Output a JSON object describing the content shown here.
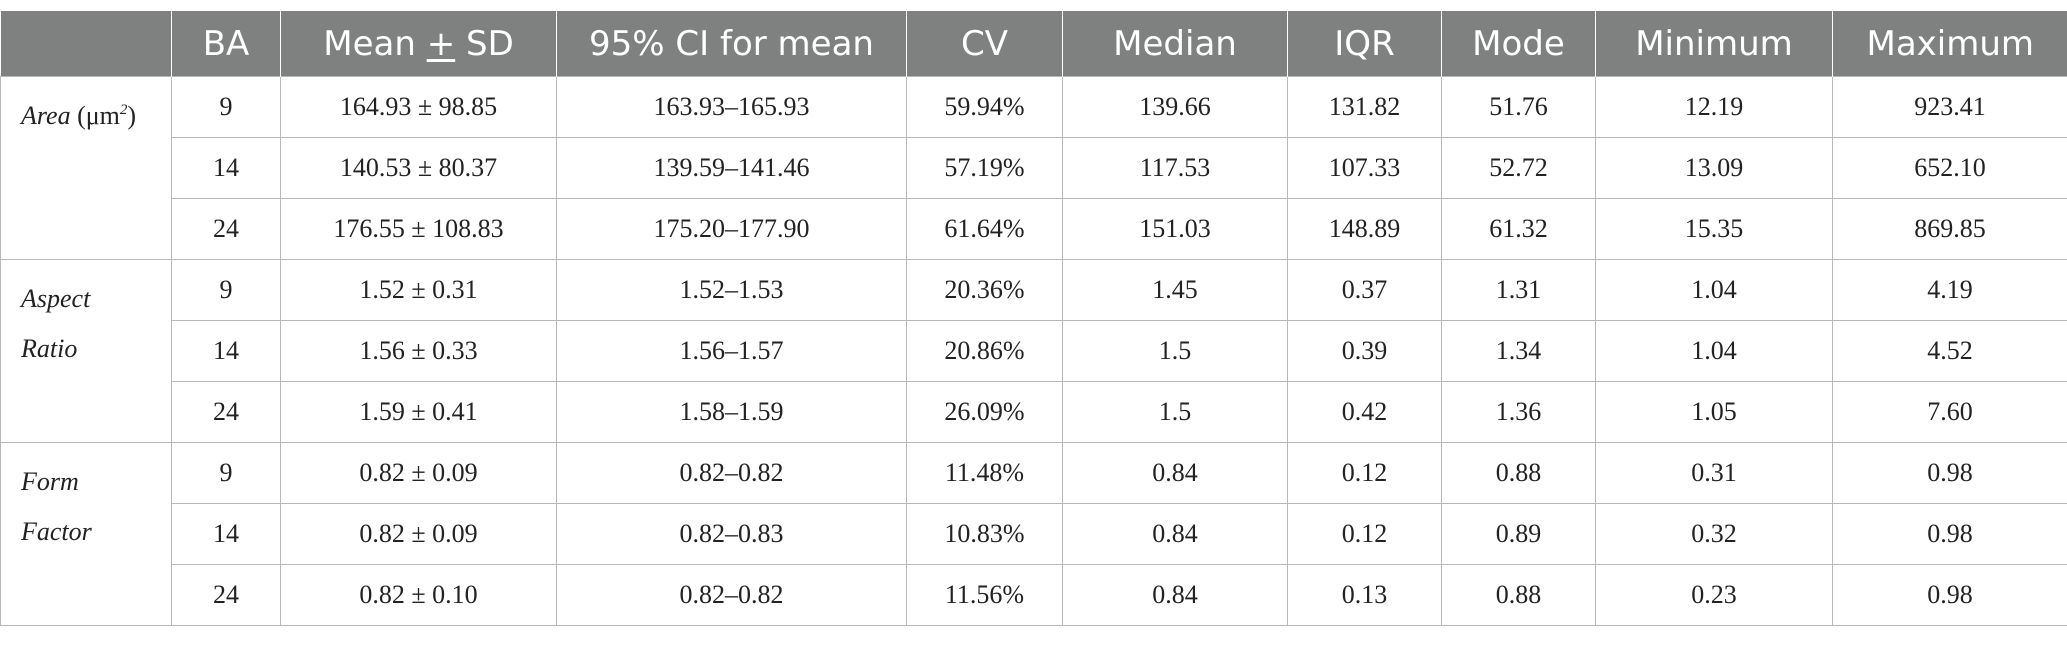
{
  "table": {
    "headers": {
      "blank": "",
      "ba": "BA",
      "mean_sd_a": "Mean ",
      "mean_sd_pm": "+",
      "mean_sd_b": " SD",
      "ci": "95% CI for mean",
      "cv": "CV",
      "median": "Median",
      "iqr": "IQR",
      "mode": "Mode",
      "min": "Minimum",
      "max": "Maximum"
    },
    "groups": [
      {
        "label_italic": "Area",
        "label_unit": " (μm",
        "label_sup": "2",
        "label_close": ")",
        "rows": [
          {
            "ba": "9",
            "mean_sd": "164.93 ± 98.85",
            "ci": "163.93–165.93",
            "cv": "59.94%",
            "median": "139.66",
            "iqr": "131.82",
            "mode": "51.76",
            "min": "12.19",
            "max": "923.41"
          },
          {
            "ba": "14",
            "mean_sd": "140.53 ± 80.37",
            "ci": "139.59–141.46",
            "cv": "57.19%",
            "median": "117.53",
            "iqr": "107.33",
            "mode": "52.72",
            "min": "13.09",
            "max": "652.10"
          },
          {
            "ba": "24",
            "mean_sd": "176.55 ± 108.83",
            "ci": "175.20–177.90",
            "cv": "61.64%",
            "median": "151.03",
            "iqr": "148.89",
            "mode": "61.32",
            "min": "15.35",
            "max": "869.85"
          }
        ]
      },
      {
        "label_line1": "Aspect",
        "label_line2": "Ratio",
        "rows": [
          {
            "ba": "9",
            "mean_sd": "1.52 ± 0.31",
            "ci": "1.52–1.53",
            "cv": "20.36%",
            "median": "1.45",
            "iqr": "0.37",
            "mode": "1.31",
            "min": "1.04",
            "max": "4.19"
          },
          {
            "ba": "14",
            "mean_sd": "1.56 ± 0.33",
            "ci": "1.56–1.57",
            "cv": "20.86%",
            "median": "1.5",
            "iqr": "0.39",
            "mode": "1.34",
            "min": "1.04",
            "max": "4.52"
          },
          {
            "ba": "24",
            "mean_sd": "1.59 ± 0.41",
            "ci": "1.58–1.59",
            "cv": "26.09%",
            "median": "1.5",
            "iqr": "0.42",
            "mode": "1.36",
            "min": "1.05",
            "max": "7.60"
          }
        ]
      },
      {
        "label_line1": "Form",
        "label_line2": "Factor",
        "rows": [
          {
            "ba": "9",
            "mean_sd": "0.82 ± 0.09",
            "ci": "0.82–0.82",
            "cv": "11.48%",
            "median": "0.84",
            "iqr": "0.12",
            "mode": "0.88",
            "min": "0.31",
            "max": "0.98"
          },
          {
            "ba": "14",
            "mean_sd": "0.82 ± 0.09",
            "ci": "0.82–0.83",
            "cv": "10.83%",
            "median": "0.84",
            "iqr": "0.12",
            "mode": "0.89",
            "min": "0.32",
            "max": "0.98"
          },
          {
            "ba": "24",
            "mean_sd": "0.82 ± 0.10",
            "ci": "0.82–0.82",
            "cv": "11.56%",
            "median": "0.84",
            "iqr": "0.13",
            "mode": "0.88",
            "min": "0.23",
            "max": "0.98"
          }
        ]
      }
    ]
  }
}
